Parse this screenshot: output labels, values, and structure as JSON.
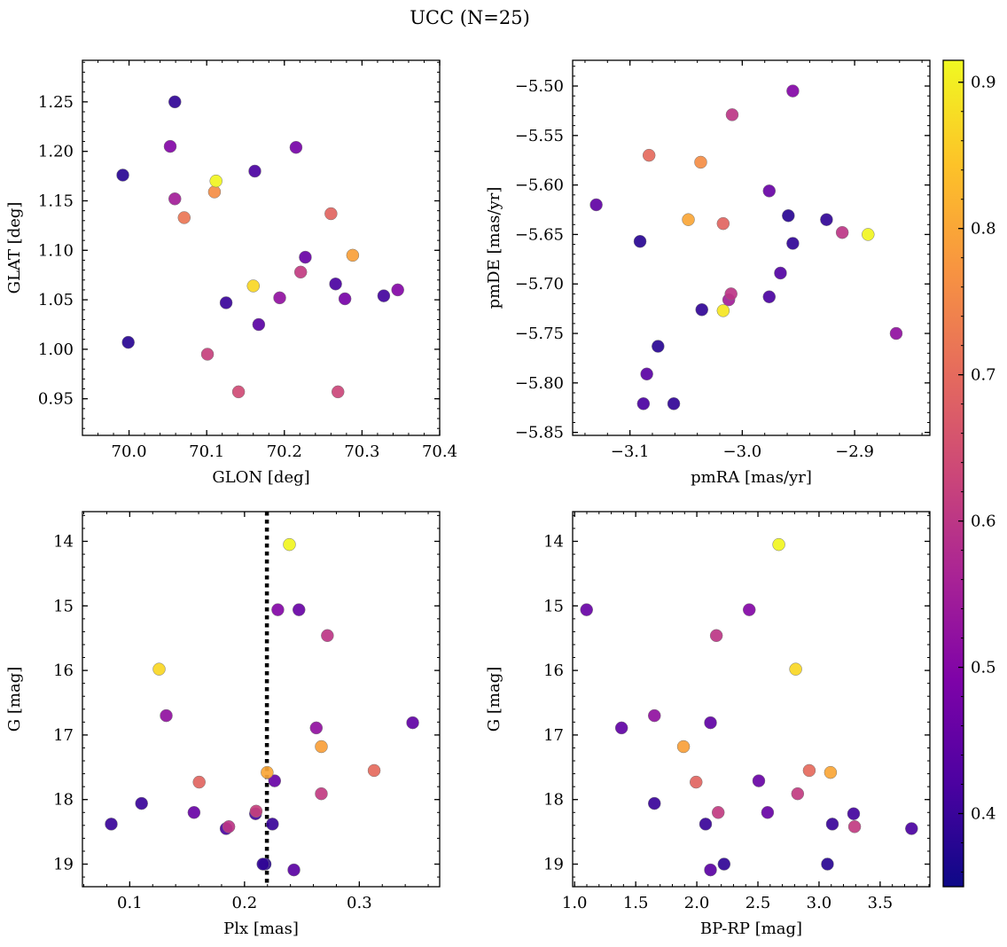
{
  "figure": {
    "title": "UCC (N=25)"
  },
  "colorbar": {
    "colormap": "plasma",
    "range": [
      0.35,
      0.915
    ],
    "ticks": [
      0.4,
      0.5,
      0.6,
      0.7,
      0.8,
      0.9
    ],
    "tick_labels": [
      "0.4",
      "0.5",
      "0.6",
      "0.7",
      "0.8",
      "0.9"
    ]
  },
  "chart_data": [
    {
      "type": "scatter",
      "id": "glon-glat",
      "xlabel": "GLON [deg]",
      "ylabel": "GLAT [deg]",
      "xlim": [
        69.94,
        70.4
      ],
      "ylim": [
        0.913,
        1.292
      ],
      "x_ticks": [
        70.0,
        70.1,
        70.2,
        70.3,
        70.4
      ],
      "x_tick_labels": [
        "70.0",
        "70.1",
        "70.2",
        "70.3",
        "70.4"
      ],
      "y_ticks": [
        0.95,
        1.0,
        1.05,
        1.1,
        1.15,
        1.2,
        1.25
      ],
      "y_tick_labels": [
        "0.95",
        "1.00",
        "1.05",
        "1.10",
        "1.15",
        "1.20",
        "1.25"
      ],
      "invert_y": false,
      "vline": null,
      "points": [
        {
          "x": 70.059,
          "y": 1.25,
          "c": 0.39
        },
        {
          "x": 69.992,
          "y": 1.176,
          "c": 0.38
        },
        {
          "x": 70.053,
          "y": 1.205,
          "c": 0.5
        },
        {
          "x": 70.059,
          "y": 1.152,
          "c": 0.55
        },
        {
          "x": 70.112,
          "y": 1.17,
          "c": 0.91
        },
        {
          "x": 70.11,
          "y": 1.159,
          "c": 0.76
        },
        {
          "x": 70.071,
          "y": 1.133,
          "c": 0.72
        },
        {
          "x": 70.162,
          "y": 1.18,
          "c": 0.42
        },
        {
          "x": 70.215,
          "y": 1.204,
          "c": 0.48
        },
        {
          "x": 70.26,
          "y": 1.137,
          "c": 0.69
        },
        {
          "x": 70.288,
          "y": 1.095,
          "c": 0.79
        },
        {
          "x": 70.227,
          "y": 1.093,
          "c": 0.46
        },
        {
          "x": 70.221,
          "y": 1.078,
          "c": 0.61
        },
        {
          "x": 70.16,
          "y": 1.064,
          "c": 0.87
        },
        {
          "x": 70.266,
          "y": 1.066,
          "c": 0.42
        },
        {
          "x": 70.194,
          "y": 1.052,
          "c": 0.52
        },
        {
          "x": 70.278,
          "y": 1.051,
          "c": 0.48
        },
        {
          "x": 70.328,
          "y": 1.054,
          "c": 0.41
        },
        {
          "x": 70.346,
          "y": 1.06,
          "c": 0.5
        },
        {
          "x": 70.125,
          "y": 1.047,
          "c": 0.4
        },
        {
          "x": 70.167,
          "y": 1.025,
          "c": 0.44
        },
        {
          "x": 69.999,
          "y": 1.007,
          "c": 0.38
        },
        {
          "x": 70.101,
          "y": 0.995,
          "c": 0.62
        },
        {
          "x": 70.141,
          "y": 0.957,
          "c": 0.64
        },
        {
          "x": 70.269,
          "y": 0.957,
          "c": 0.63
        }
      ]
    },
    {
      "type": "scatter",
      "id": "pmra-pmde",
      "xlabel": "pmRA [mas/yr]",
      "ylabel": "pmDE [mas/yr]",
      "xlim": [
        -3.151,
        -2.833
      ],
      "ylim": [
        -5.853,
        -5.474
      ],
      "x_ticks": [
        -3.1,
        -3.0,
        -2.9
      ],
      "x_tick_labels": [
        "−3.1",
        "−3.0",
        "−2.9"
      ],
      "y_ticks": [
        -5.85,
        -5.8,
        -5.75,
        -5.7,
        -5.65,
        -5.6,
        -5.55,
        -5.5
      ],
      "y_tick_labels": [
        "−5.85",
        "−5.80",
        "−5.75",
        "−5.70",
        "−5.65",
        "−5.60",
        "−5.55",
        "−5.50"
      ],
      "invert_y": false,
      "vline": null,
      "points": [
        {
          "x": -2.955,
          "y": -5.505,
          "c": 0.5
        },
        {
          "x": -3.009,
          "y": -5.529,
          "c": 0.6
        },
        {
          "x": -3.083,
          "y": -5.57,
          "c": 0.7
        },
        {
          "x": -3.037,
          "y": -5.577,
          "c": 0.76
        },
        {
          "x": -2.976,
          "y": -5.606,
          "c": 0.46
        },
        {
          "x": -3.13,
          "y": -5.62,
          "c": 0.45
        },
        {
          "x": -2.959,
          "y": -5.631,
          "c": 0.38
        },
        {
          "x": -2.925,
          "y": -5.635,
          "c": 0.39
        },
        {
          "x": -3.048,
          "y": -5.635,
          "c": 0.8
        },
        {
          "x": -3.017,
          "y": -5.639,
          "c": 0.69
        },
        {
          "x": -2.911,
          "y": -5.648,
          "c": 0.6
        },
        {
          "x": -2.888,
          "y": -5.65,
          "c": 0.91
        },
        {
          "x": -3.091,
          "y": -5.657,
          "c": 0.38
        },
        {
          "x": -2.955,
          "y": -5.659,
          "c": 0.39
        },
        {
          "x": -2.966,
          "y": -5.689,
          "c": 0.43
        },
        {
          "x": -2.976,
          "y": -5.713,
          "c": 0.42
        },
        {
          "x": -3.01,
          "y": -5.71,
          "c": 0.6
        },
        {
          "x": -3.012,
          "y": -5.716,
          "c": 0.55
        },
        {
          "x": -3.036,
          "y": -5.726,
          "c": 0.39
        },
        {
          "x": -3.017,
          "y": -5.727,
          "c": 0.89
        },
        {
          "x": -2.863,
          "y": -5.75,
          "c": 0.52
        },
        {
          "x": -3.075,
          "y": -5.763,
          "c": 0.38
        },
        {
          "x": -3.085,
          "y": -5.791,
          "c": 0.44
        },
        {
          "x": -3.088,
          "y": -5.821,
          "c": 0.42
        },
        {
          "x": -3.061,
          "y": -5.821,
          "c": 0.39
        }
      ]
    },
    {
      "type": "scatter",
      "id": "plx-g",
      "xlabel": "Plx [mas]",
      "ylabel": "G [mag]",
      "xlim": [
        0.0588,
        0.37
      ],
      "ylim": [
        13.54,
        19.35
      ],
      "x_ticks": [
        0.1,
        0.2,
        0.3
      ],
      "x_tick_labels": [
        "0.1",
        "0.2",
        "0.3"
      ],
      "y_ticks": [
        14,
        15,
        16,
        17,
        18,
        19
      ],
      "y_tick_labels": [
        "14",
        "15",
        "16",
        "17",
        "18",
        "19"
      ],
      "invert_y": true,
      "vline": 0.2195,
      "points": [
        {
          "x": 0.2391,
          "y": 14.05,
          "c": 0.91
        },
        {
          "x": 0.229,
          "y": 15.06,
          "c": 0.5
        },
        {
          "x": 0.2474,
          "y": 15.06,
          "c": 0.46
        },
        {
          "x": 0.2722,
          "y": 15.46,
          "c": 0.6
        },
        {
          "x": 0.1256,
          "y": 15.98,
          "c": 0.87
        },
        {
          "x": 0.1318,
          "y": 16.7,
          "c": 0.52
        },
        {
          "x": 0.2625,
          "y": 16.89,
          "c": 0.52
        },
        {
          "x": 0.3465,
          "y": 16.81,
          "c": 0.45
        },
        {
          "x": 0.2669,
          "y": 17.18,
          "c": 0.79
        },
        {
          "x": 0.2197,
          "y": 17.58,
          "c": 0.8
        },
        {
          "x": 0.3129,
          "y": 17.55,
          "c": 0.7
        },
        {
          "x": 0.1605,
          "y": 17.73,
          "c": 0.69
        },
        {
          "x": 0.2262,
          "y": 17.71,
          "c": 0.46
        },
        {
          "x": 0.2669,
          "y": 17.91,
          "c": 0.61
        },
        {
          "x": 0.1103,
          "y": 18.06,
          "c": 0.4
        },
        {
          "x": 0.156,
          "y": 18.2,
          "c": 0.46
        },
        {
          "x": 0.2101,
          "y": 18.18,
          "c": 0.62
        },
        {
          "x": 0.2096,
          "y": 18.22,
          "c": 0.41
        },
        {
          "x": 0.0839,
          "y": 18.38,
          "c": 0.4
        },
        {
          "x": 0.2243,
          "y": 18.38,
          "c": 0.4
        },
        {
          "x": 0.1863,
          "y": 18.42,
          "c": 0.6
        },
        {
          "x": 0.184,
          "y": 18.45,
          "c": 0.42
        },
        {
          "x": 0.2161,
          "y": 19.0,
          "c": 0.39
        },
        {
          "x": 0.2179,
          "y": 19.0,
          "c": 0.38
        },
        {
          "x": 0.243,
          "y": 19.09,
          "c": 0.44
        }
      ]
    },
    {
      "type": "scatter",
      "id": "bprp-g",
      "xlabel": "BP-RP [mag]",
      "ylabel": "G [mag]",
      "xlim": [
        0.984,
        3.907
      ],
      "ylim": [
        13.54,
        19.35
      ],
      "x_ticks": [
        1.0,
        1.5,
        2.0,
        2.5,
        3.0,
        3.5
      ],
      "x_tick_labels": [
        "1.0",
        "1.5",
        "2.0",
        "2.5",
        "3.0",
        "3.5"
      ],
      "y_ticks": [
        14,
        15,
        16,
        17,
        18,
        19
      ],
      "y_tick_labels": [
        "14",
        "15",
        "16",
        "17",
        "18",
        "19"
      ],
      "invert_y": true,
      "vline": null,
      "points": [
        {
          "x": 2.671,
          "y": 14.05,
          "c": 0.91
        },
        {
          "x": 1.098,
          "y": 15.06,
          "c": 0.46
        },
        {
          "x": 2.429,
          "y": 15.06,
          "c": 0.5
        },
        {
          "x": 2.16,
          "y": 15.46,
          "c": 0.6
        },
        {
          "x": 2.809,
          "y": 15.98,
          "c": 0.87
        },
        {
          "x": 1.653,
          "y": 16.7,
          "c": 0.52
        },
        {
          "x": 1.384,
          "y": 16.89,
          "c": 0.45
        },
        {
          "x": 2.112,
          "y": 16.81,
          "c": 0.45
        },
        {
          "x": 1.891,
          "y": 17.18,
          "c": 0.79
        },
        {
          "x": 3.094,
          "y": 17.58,
          "c": 0.8
        },
        {
          "x": 2.92,
          "y": 17.55,
          "c": 0.7
        },
        {
          "x": 1.994,
          "y": 17.73,
          "c": 0.69
        },
        {
          "x": 2.507,
          "y": 17.71,
          "c": 0.46
        },
        {
          "x": 2.825,
          "y": 17.91,
          "c": 0.61
        },
        {
          "x": 1.653,
          "y": 18.06,
          "c": 0.4
        },
        {
          "x": 2.175,
          "y": 18.2,
          "c": 0.61
        },
        {
          "x": 2.579,
          "y": 18.2,
          "c": 0.46
        },
        {
          "x": 3.283,
          "y": 18.22,
          "c": 0.41
        },
        {
          "x": 2.072,
          "y": 18.38,
          "c": 0.4
        },
        {
          "x": 3.109,
          "y": 18.38,
          "c": 0.4
        },
        {
          "x": 3.291,
          "y": 18.42,
          "c": 0.61
        },
        {
          "x": 3.757,
          "y": 18.45,
          "c": 0.42
        },
        {
          "x": 2.223,
          "y": 19.0,
          "c": 0.39
        },
        {
          "x": 3.069,
          "y": 19.0,
          "c": 0.38
        },
        {
          "x": 2.112,
          "y": 19.09,
          "c": 0.44
        }
      ]
    }
  ]
}
